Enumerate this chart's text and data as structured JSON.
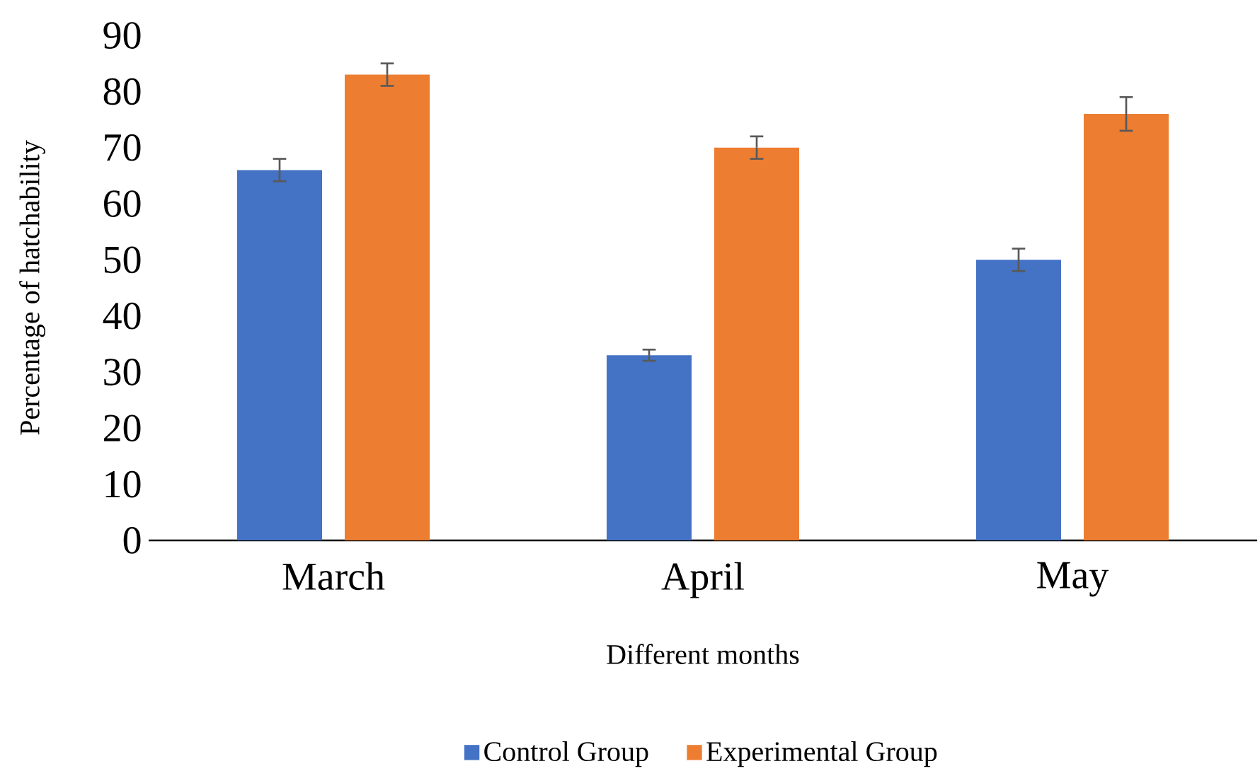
{
  "chart_data": {
    "type": "bar",
    "xlabel": "Different months",
    "ylabel": "Percentage of hatchability",
    "categories": [
      "March",
      "April",
      "May"
    ],
    "series": [
      {
        "name": "Control Group",
        "color": "#4472c4",
        "values": [
          66,
          33,
          50
        ],
        "errors": [
          2,
          1,
          2
        ]
      },
      {
        "name": "Experimental Group",
        "color": "#ed7d31",
        "values": [
          83,
          70,
          76
        ],
        "errors": [
          2,
          2,
          3
        ]
      }
    ],
    "ylim": [
      0,
      90
    ],
    "yticks": [
      0,
      10,
      20,
      30,
      40,
      50,
      60,
      70,
      80,
      90
    ],
    "legend": "bottom"
  }
}
